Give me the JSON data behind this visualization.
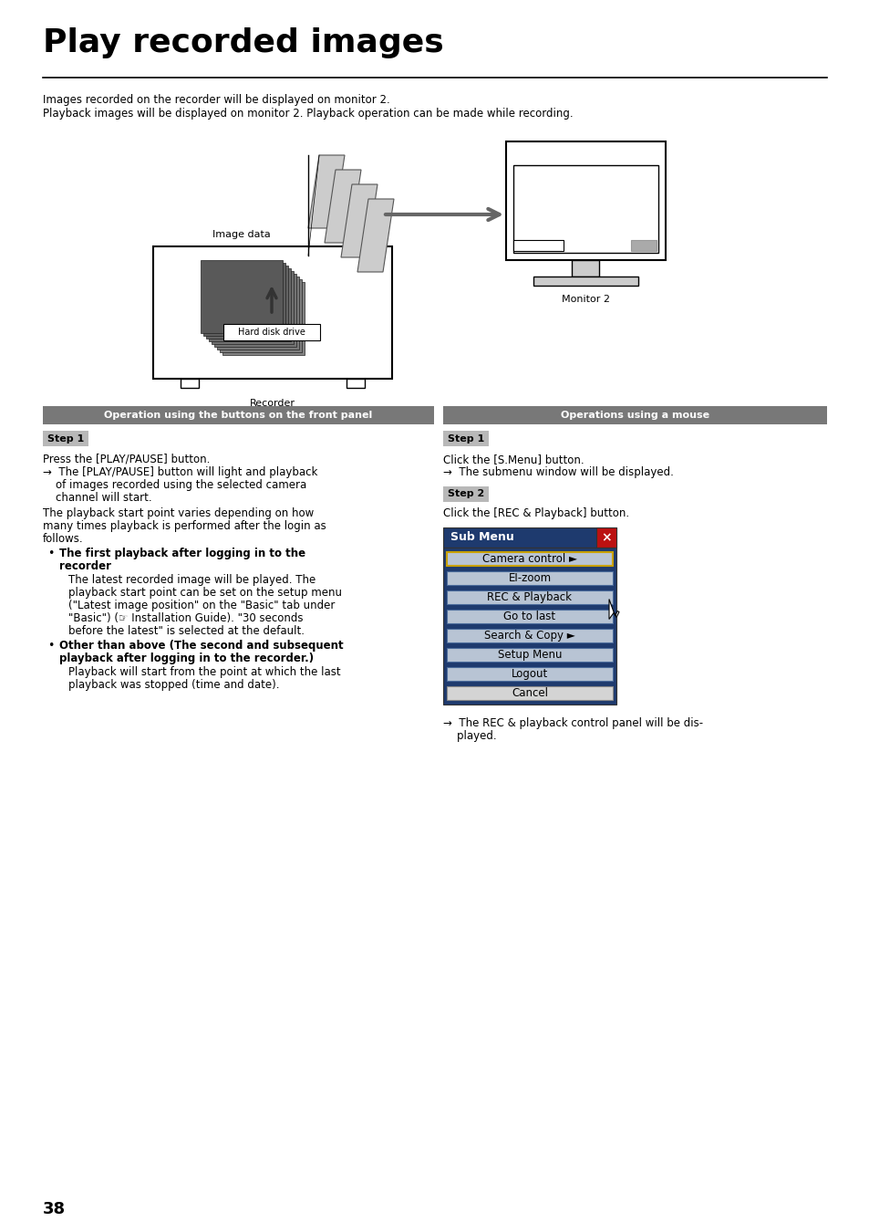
{
  "title": "Play recorded images",
  "bg_color": "#ffffff",
  "intro_line1": "Images recorded on the recorder will be displayed on monitor 2.",
  "intro_line2": "Playback images will be displayed on monitor 2. Playback operation can be made while recording.",
  "left_header": "Operation using the buttons on the front panel",
  "right_header": "Operations using a mouse",
  "step1_left": "Step 1",
  "step1_left_text1": "Press the [PLAY/PAUSE] button.",
  "step1_left_arrow": "→  The [PLAY/PAUSE] button will light and playback",
  "step1_left_indent1": "    of images recorded using the selected camera",
  "step1_left_indent2": "    channel will start.",
  "step1_left_text3a": "The playback start point varies depending on how",
  "step1_left_text3b": "many times playback is performed after the login as",
  "step1_left_text3c": "follows.",
  "bullet1_title_a": "The first playback after logging in to the",
  "bullet1_title_b": "recorder",
  "bullet1_text_a": "The latest recorded image will be played. The",
  "bullet1_text_b": "playback start point can be set on the setup menu",
  "bullet1_text_c": "(\"Latest image position\" on the \"Basic\" tab under",
  "bullet1_text_d": "\"Basic\") (☞ Installation Guide). \"30 seconds",
  "bullet1_text_e": "before the latest\" is selected at the default.",
  "bullet2_title_a": "Other than above (The second and subsequent",
  "bullet2_title_b": "playback after logging in to the recorder.)",
  "bullet2_text_a": "Playback will start from the point at which the last",
  "bullet2_text_b": "playback was stopped (time and date).",
  "step1_right": "Step 1",
  "step1_right_text1": "Click the [S.Menu] button.",
  "step1_right_text2": "→  The submenu window will be displayed.",
  "step2_right": "Step 2",
  "step2_right_text": "Click the [REC & Playback] button.",
  "submenu_title": "Sub Menu",
  "submenu_items": [
    "Camera control ►",
    "EI-zoom",
    "REC & Playback",
    "Go to last",
    "Search & Copy ►",
    "Setup Menu",
    "Logout",
    "Cancel"
  ],
  "arrow_note_a": "→  The REC & playback control panel will be dis-",
  "arrow_note_b": "    played.",
  "page_number": "38",
  "header_bg": "#787878",
  "step_bg": "#b8b8b8",
  "submenu_title_bg": "#1e3a6e",
  "submenu_item_bg": "#7a8faa",
  "submenu_camera_border": "#c8a000",
  "cancel_bg": "#cccccc"
}
